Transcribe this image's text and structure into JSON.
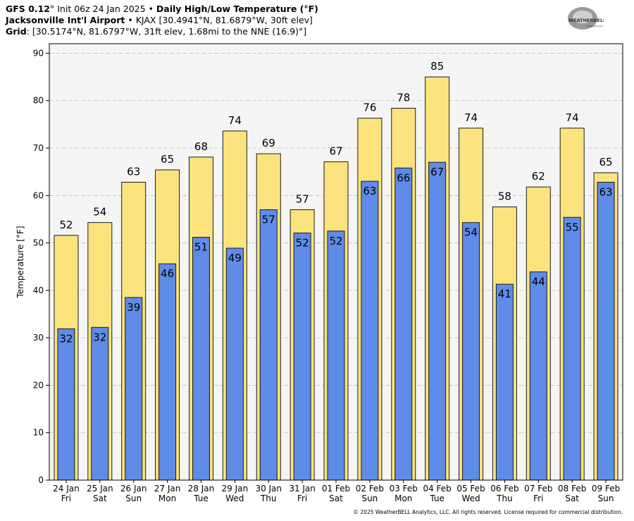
{
  "header": {
    "model": "GFS 0.12",
    "model_suffix": "°",
    "init": "Init 06z 24 Jan 2025",
    "bullet": "•",
    "product": "Daily High/Low Temperature (°F)",
    "station_name": "Jacksonville Int'l Airport",
    "station_info": "KJAX [30.4941°N, 81.6879°W, 30ft elev]",
    "grid_label": "Grid",
    "grid_info": ": [30.5174°N, 81.6797°W, 31ft elev, 1.68mi to the NNE (16.9)°]"
  },
  "logo": {
    "text": "WEATHERBELL",
    "subtext": "Analytics LLC"
  },
  "copyright": "© 2025 WeatherBELL Analytics, LLC. All rights reserved. License required for commercial distribution.",
  "colors": {
    "high": "#fde37d",
    "low": "#5e8ce8",
    "plot_bg": "#f5f5f5",
    "grid": "#bdbdbd",
    "outline": "#1a1a1a"
  },
  "chart_data": {
    "type": "bar",
    "title": "Daily High/Low Temperature (°F)",
    "ylabel": "Temperature [°F]",
    "ylim": [
      0,
      92
    ],
    "yticks": [
      0,
      10,
      20,
      30,
      40,
      50,
      60,
      70,
      80,
      90
    ],
    "grid": true,
    "categories": [
      {
        "date": "24 Jan",
        "day": "Fri"
      },
      {
        "date": "25 Jan",
        "day": "Sat"
      },
      {
        "date": "26 Jan",
        "day": "Sun"
      },
      {
        "date": "27 Jan",
        "day": "Mon"
      },
      {
        "date": "28 Jan",
        "day": "Tue"
      },
      {
        "date": "29 Jan",
        "day": "Wed"
      },
      {
        "date": "30 Jan",
        "day": "Thu"
      },
      {
        "date": "31 Jan",
        "day": "Fri"
      },
      {
        "date": "01 Feb",
        "day": "Sat"
      },
      {
        "date": "02 Feb",
        "day": "Sun"
      },
      {
        "date": "03 Feb",
        "day": "Mon"
      },
      {
        "date": "04 Feb",
        "day": "Tue"
      },
      {
        "date": "05 Feb",
        "day": "Wed"
      },
      {
        "date": "06 Feb",
        "day": "Thu"
      },
      {
        "date": "07 Feb",
        "day": "Fri"
      },
      {
        "date": "08 Feb",
        "day": "Sat"
      },
      {
        "date": "09 Feb",
        "day": "Sun"
      }
    ],
    "series": [
      {
        "key": "high",
        "values": [
          51.6,
          54.3,
          62.8,
          65.4,
          68.1,
          73.6,
          68.8,
          57.0,
          67.1,
          76.3,
          78.4,
          85.0,
          74.2,
          57.6,
          61.8,
          74.2,
          64.8
        ],
        "labels": [
          "52",
          "54",
          "63",
          "65",
          "68",
          "74",
          "69",
          "57",
          "67",
          "76",
          "78",
          "85",
          "74",
          "58",
          "62",
          "74",
          "65"
        ]
      },
      {
        "key": "low",
        "values": [
          31.9,
          32.2,
          38.5,
          45.6,
          51.2,
          48.9,
          57.0,
          52.1,
          52.5,
          63.0,
          65.8,
          67.0,
          54.3,
          41.3,
          43.9,
          55.4,
          62.8
        ],
        "labels": [
          "32",
          "32",
          "39",
          "46",
          "51",
          "49",
          "57",
          "52",
          "52",
          "63",
          "66",
          "67",
          "54",
          "41",
          "44",
          "55",
          "63"
        ]
      }
    ]
  }
}
